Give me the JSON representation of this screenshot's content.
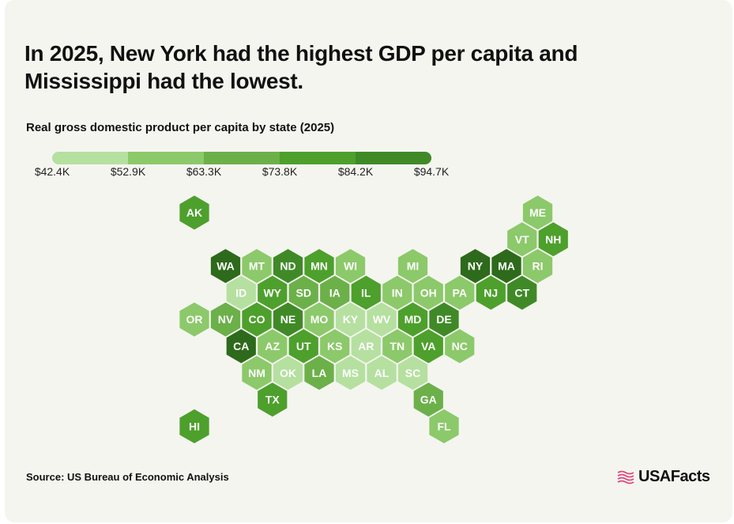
{
  "title": "In 2025, New York had the highest GDP per capita and Mississippi had the lowest.",
  "subtitle": "Real gross domestic product per capita by state (2025)",
  "legend": {
    "labels": [
      "$42.4K",
      "$52.9K",
      "$63.3K",
      "$73.8K",
      "$84.2K",
      "$94.7K"
    ],
    "colors": [
      "#b5e0a0",
      "#8cc96a",
      "#6cb04a",
      "#4da02c",
      "#3f8a27",
      "#2d6a1b"
    ]
  },
  "states": [
    {
      "abbr": "AK",
      "row": 0,
      "col": 0,
      "bin": 3
    },
    {
      "abbr": "ME",
      "row": 0,
      "col": 11,
      "bin": 1
    },
    {
      "abbr": "VT",
      "row": 1,
      "col": 10,
      "bin": 1
    },
    {
      "abbr": "NH",
      "row": 1,
      "col": 11,
      "bin": 3
    },
    {
      "abbr": "WA",
      "row": 2,
      "col": 1,
      "bin": 5
    },
    {
      "abbr": "MT",
      "row": 2,
      "col": 2,
      "bin": 1
    },
    {
      "abbr": "ND",
      "row": 2,
      "col": 3,
      "bin": 4
    },
    {
      "abbr": "MN",
      "row": 2,
      "col": 4,
      "bin": 3
    },
    {
      "abbr": "WI",
      "row": 2,
      "col": 5,
      "bin": 1
    },
    {
      "abbr": "MI",
      "row": 2,
      "col": 7,
      "bin": 1
    },
    {
      "abbr": "NY",
      "row": 2,
      "col": 9,
      "bin": 5
    },
    {
      "abbr": "MA",
      "row": 2,
      "col": 10,
      "bin": 5
    },
    {
      "abbr": "RI",
      "row": 2,
      "col": 11,
      "bin": 1
    },
    {
      "abbr": "ID",
      "row": 3,
      "col": 1,
      "bin": 0
    },
    {
      "abbr": "WY",
      "row": 3,
      "col": 2,
      "bin": 3
    },
    {
      "abbr": "SD",
      "row": 3,
      "col": 3,
      "bin": 2
    },
    {
      "abbr": "IA",
      "row": 3,
      "col": 4,
      "bin": 2
    },
    {
      "abbr": "IL",
      "row": 3,
      "col": 5,
      "bin": 3
    },
    {
      "abbr": "IN",
      "row": 3,
      "col": 6,
      "bin": 1
    },
    {
      "abbr": "OH",
      "row": 3,
      "col": 7,
      "bin": 1
    },
    {
      "abbr": "PA",
      "row": 3,
      "col": 8,
      "bin": 1
    },
    {
      "abbr": "NJ",
      "row": 3,
      "col": 9,
      "bin": 3
    },
    {
      "abbr": "CT",
      "row": 3,
      "col": 10,
      "bin": 4
    },
    {
      "abbr": "OR",
      "row": 4,
      "col": 0,
      "bin": 1
    },
    {
      "abbr": "NV",
      "row": 4,
      "col": 1,
      "bin": 2
    },
    {
      "abbr": "CO",
      "row": 4,
      "col": 2,
      "bin": 3
    },
    {
      "abbr": "NE",
      "row": 4,
      "col": 3,
      "bin": 4
    },
    {
      "abbr": "MO",
      "row": 4,
      "col": 4,
      "bin": 1
    },
    {
      "abbr": "KY",
      "row": 4,
      "col": 5,
      "bin": 0
    },
    {
      "abbr": "WV",
      "row": 4,
      "col": 6,
      "bin": 0
    },
    {
      "abbr": "MD",
      "row": 4,
      "col": 7,
      "bin": 3
    },
    {
      "abbr": "DE",
      "row": 4,
      "col": 8,
      "bin": 4
    },
    {
      "abbr": "CA",
      "row": 5,
      "col": 1,
      "bin": 5
    },
    {
      "abbr": "AZ",
      "row": 5,
      "col": 2,
      "bin": 1
    },
    {
      "abbr": "UT",
      "row": 5,
      "col": 3,
      "bin": 3
    },
    {
      "abbr": "KS",
      "row": 5,
      "col": 4,
      "bin": 1
    },
    {
      "abbr": "AR",
      "row": 5,
      "col": 5,
      "bin": 0
    },
    {
      "abbr": "TN",
      "row": 5,
      "col": 6,
      "bin": 1
    },
    {
      "abbr": "VA",
      "row": 5,
      "col": 7,
      "bin": 3
    },
    {
      "abbr": "NC",
      "row": 5,
      "col": 8,
      "bin": 1
    },
    {
      "abbr": "NM",
      "row": 6,
      "col": 2,
      "bin": 1
    },
    {
      "abbr": "OK",
      "row": 6,
      "col": 3,
      "bin": 0
    },
    {
      "abbr": "LA",
      "row": 6,
      "col": 4,
      "bin": 2
    },
    {
      "abbr": "MS",
      "row": 6,
      "col": 5,
      "bin": 0
    },
    {
      "abbr": "AL",
      "row": 6,
      "col": 6,
      "bin": 0
    },
    {
      "abbr": "SC",
      "row": 6,
      "col": 7,
      "bin": 0
    },
    {
      "abbr": "TX",
      "row": 7,
      "col": 2,
      "bin": 3
    },
    {
      "abbr": "GA",
      "row": 7,
      "col": 7,
      "bin": 2
    },
    {
      "abbr": "HI",
      "row": 8,
      "col": 0,
      "bin": 3
    },
    {
      "abbr": "FL",
      "row": 8,
      "col": 8,
      "bin": 1
    }
  ],
  "source": "Source: US Bureau of Economic Analysis",
  "logo": {
    "text": "USAFacts",
    "icon": "usafacts-flag-icon",
    "icon_color": "#e0457b"
  }
}
